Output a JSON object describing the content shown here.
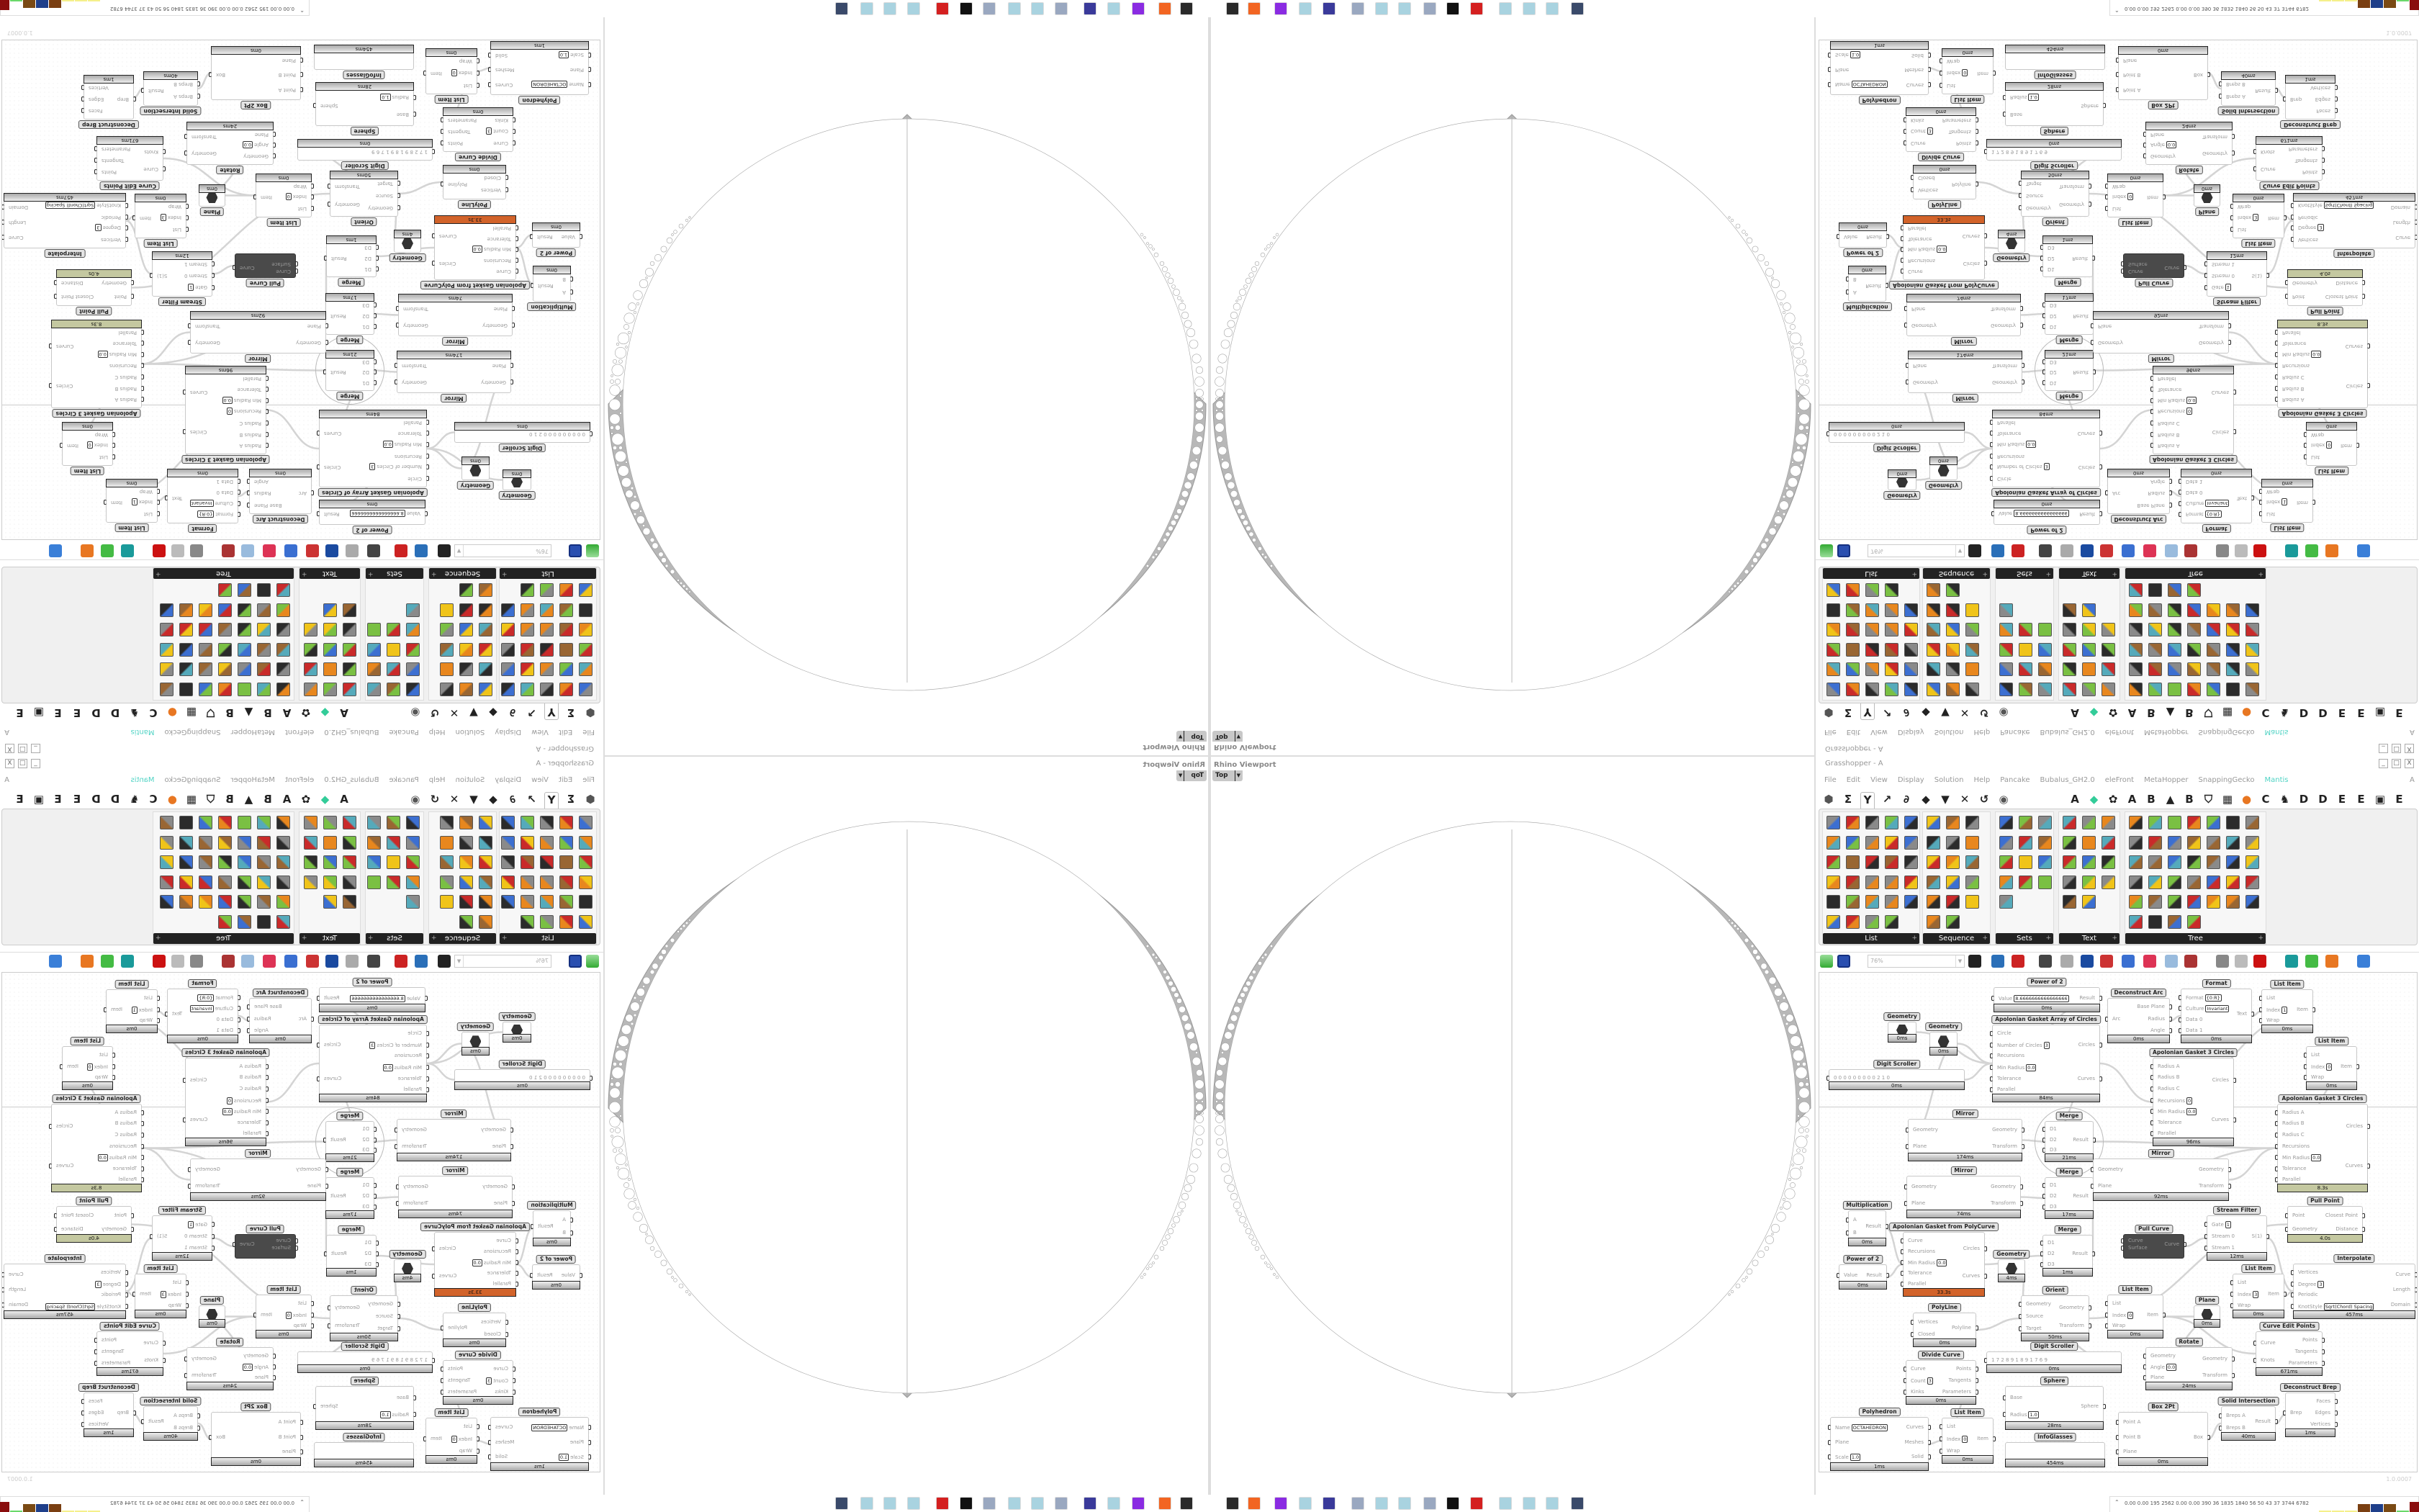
{
  "viewport": {
    "title": "Rhino Viewport",
    "view": "Top"
  },
  "grasshopper": {
    "title": "Grasshopper - A",
    "window_buttons": [
      "_",
      "□",
      "X"
    ],
    "menu": [
      "File",
      "Edit",
      "View",
      "Display",
      "Solution",
      "Help",
      "Pancake",
      "Bubalus_GH2.0",
      "eleFront",
      "MetaHopper",
      "SnappingGecko",
      "Mantis"
    ],
    "menu_accent": "#4fd3c4",
    "user_initial": "A",
    "tabs": [
      {
        "icon": "params-hexagon-icon",
        "glyph": "⬢"
      },
      {
        "icon": "maths-sigma-icon",
        "glyph": "Σ"
      },
      {
        "icon": "sets-icon",
        "glyph": "Y",
        "selected": true
      },
      {
        "icon": "vector-arrow-icon",
        "glyph": "↗"
      },
      {
        "icon": "curve-icon",
        "glyph": "∂"
      },
      {
        "icon": "surface-icon",
        "glyph": "◆"
      },
      {
        "icon": "mesh-icon",
        "glyph": "▼"
      },
      {
        "icon": "intersect-icon",
        "glyph": "✕"
      },
      {
        "icon": "transform-icon",
        "glyph": "↺"
      },
      {
        "icon": "display-eye-icon",
        "glyph": "◉"
      },
      {
        "icon": "letter-tab",
        "glyph": "A"
      },
      {
        "icon": "gem-icon",
        "glyph": "◆"
      },
      {
        "icon": "gear-icon",
        "glyph": "✿"
      },
      {
        "icon": "letter-tab",
        "glyph": "A"
      },
      {
        "icon": "letter-tab",
        "glyph": "B"
      },
      {
        "icon": "mountain-icon",
        "glyph": "▲"
      },
      {
        "icon": "letter-tab",
        "glyph": "B"
      },
      {
        "icon": "shield-icon",
        "glyph": "⛉"
      },
      {
        "icon": "grid-icon",
        "glyph": "▦"
      },
      {
        "icon": "orange-circle-icon",
        "glyph": "●"
      },
      {
        "icon": "letter-tab",
        "glyph": "C"
      },
      {
        "icon": "rooster-icon",
        "glyph": "♞"
      },
      {
        "icon": "letter-tab",
        "glyph": "D"
      },
      {
        "icon": "letter-tab",
        "glyph": "D"
      },
      {
        "icon": "letter-tab",
        "glyph": "E"
      },
      {
        "icon": "letter-tab",
        "glyph": "E"
      },
      {
        "icon": "dotted-square-icon",
        "glyph": "▣"
      },
      {
        "icon": "letter-tab",
        "glyph": "E"
      }
    ],
    "panels": [
      {
        "label": "List"
      },
      {
        "label": "Sequence"
      },
      {
        "label": "Sets"
      },
      {
        "label": "Text"
      },
      {
        "label": "Tree"
      }
    ],
    "zoom": "76%",
    "version": "1.0.0007",
    "nodes": [
      {
        "title": "Power of 2",
        "inputs": [
          {
            "label": "Value",
            "value": "8.6666666666666666"
          }
        ],
        "outputs": [
          "Result"
        ],
        "time": "0ms"
      },
      {
        "title": "Apolonian Gasket Array of Circles",
        "inputs": [
          {
            "label": "Circle"
          },
          {
            "label": "Number of Circles",
            "value": "3"
          },
          {
            "label": "Recursions"
          },
          {
            "label": "Min Radius",
            "value": "0.0"
          },
          {
            "label": "Tolerance"
          },
          {
            "label": "Parallel"
          }
        ],
        "outputs": [
          "Circles",
          "Curves"
        ],
        "time": "84ms"
      },
      {
        "title": "Geometry",
        "inputs": [],
        "outputs": [],
        "time": "0ms",
        "icon": true
      },
      {
        "title": "Geometry",
        "inputs": [],
        "outputs": [],
        "time": "0ms",
        "icon": true
      },
      {
        "title": "Digit Scroller",
        "inputs": [
          {
            "label": "0 0 0 0 0 0 0 0 0 2 1 0"
          }
        ],
        "outputs": [],
        "time": "0ms"
      },
      {
        "title": "Mirror",
        "inputs": [
          {
            "label": "Geometry"
          },
          {
            "label": "Plane"
          }
        ],
        "outputs": [
          "Geometry",
          "Transform"
        ],
        "time": "174ms"
      },
      {
        "title": "Merge",
        "inputs": [
          {
            "label": "D1"
          },
          {
            "label": "D2"
          },
          {
            "label": "D3"
          }
        ],
        "outputs": [
          "Result"
        ],
        "time": "21ms"
      },
      {
        "title": "Mirror",
        "inputs": [
          {
            "label": "Geometry"
          },
          {
            "label": "Plane"
          }
        ],
        "outputs": [
          "Geometry",
          "Transform"
        ],
        "time": "74ms"
      },
      {
        "title": "Merge",
        "inputs": [
          {
            "label": "D1"
          },
          {
            "label": "D2"
          },
          {
            "label": "D3"
          }
        ],
        "outputs": [
          "Result"
        ],
        "time": "17ms"
      },
      {
        "title": "Multiplication",
        "inputs": [
          {
            "label": "A"
          },
          {
            "label": "B"
          }
        ],
        "outputs": [
          "Result"
        ],
        "time": "0ms"
      },
      {
        "title": "Apolonian Gasket from PolyCurve",
        "inputs": [
          {
            "label": "Curve"
          },
          {
            "label": "Recursions"
          },
          {
            "label": "Min Radius",
            "value": "0.0"
          },
          {
            "label": "Tolerance"
          },
          {
            "label": "Parallel"
          }
        ],
        "outputs": [
          "Circles",
          "Curves"
        ],
        "time": "33.3s",
        "state": "warn"
      },
      {
        "title": "Merge",
        "inputs": [
          {
            "label": "D1"
          },
          {
            "label": "D2"
          },
          {
            "label": "D3"
          }
        ],
        "outputs": [
          "Result"
        ],
        "time": "1ms"
      },
      {
        "title": "Geometry",
        "inputs": [],
        "outputs": [],
        "time": "4ms",
        "icon": true
      },
      {
        "title": "Power of 2",
        "inputs": [
          {
            "label": "Value"
          }
        ],
        "outputs": [
          "Result"
        ],
        "time": "0ms"
      },
      {
        "title": "Orient",
        "inputs": [
          {
            "label": "Geometry"
          },
          {
            "label": "Source"
          },
          {
            "label": "Target"
          }
        ],
        "outputs": [
          "Geometry",
          "Transform"
        ],
        "time": "50ms"
      },
      {
        "title": "PolyLine",
        "inputs": [
          {
            "label": "Vertices"
          },
          {
            "label": "Closed"
          }
        ],
        "outputs": [
          "Polyline"
        ],
        "time": "0ms"
      },
      {
        "title": "Digit Scroller",
        "inputs": [
          {
            "label": "1 7 2 8 9 1 8 9 1 7 6 9"
          }
        ],
        "outputs": [],
        "time": "0ms"
      },
      {
        "title": "Divide Curve",
        "inputs": [
          {
            "label": "Curve"
          },
          {
            "label": "Count",
            "value": "3"
          },
          {
            "label": "Kinks"
          }
        ],
        "outputs": [
          "Points",
          "Tangents",
          "Parameters"
        ],
        "time": "0ms"
      },
      {
        "title": "Sphere",
        "inputs": [
          {
            "label": "Base"
          },
          {
            "label": "Radius",
            "value": "1.0"
          }
        ],
        "outputs": [
          "Sphere"
        ],
        "time": "28ms"
      },
      {
        "title": "Polyhedron",
        "inputs": [
          {
            "label": "Name",
            "value": "OCTAHEDRON"
          },
          {
            "label": "Plane"
          },
          {
            "label": "Scale",
            "value": "1.0"
          }
        ],
        "outputs": [
          "Curves",
          "Meshes",
          "Solid"
        ],
        "time": "1ms"
      },
      {
        "title": "List Item",
        "inputs": [
          {
            "label": "List"
          },
          {
            "label": "Index",
            "value": "0"
          },
          {
            "label": "Wrap"
          }
        ],
        "outputs": [
          "Item"
        ],
        "time": "0ms"
      },
      {
        "title": "InfoGlasses",
        "inputs": [],
        "outputs": [],
        "time": "454ms"
      },
      {
        "title": "Deconstruct Arc",
        "inputs": [
          {
            "label": "Arc"
          }
        ],
        "outputs": [
          "Base Plane",
          "Radius",
          "Angle"
        ],
        "time": "0ms"
      },
      {
        "title": "Format",
        "inputs": [
          {
            "label": "Format",
            "value": "{0:R}"
          },
          {
            "label": "Culture",
            "value": "Invariant"
          },
          {
            "label": "Data 0"
          },
          {
            "label": "Data 1"
          }
        ],
        "outputs": [
          "Text"
        ],
        "time": "0ms"
      },
      {
        "title": "List Item",
        "inputs": [
          {
            "label": "List"
          },
          {
            "label": "Index",
            "value": "1"
          },
          {
            "label": "Wrap"
          }
        ],
        "outputs": [
          "Item"
        ],
        "time": "0ms"
      },
      {
        "title": "Apolonian Gasket 3 Circles",
        "inputs": [
          {
            "label": "Radius A"
          },
          {
            "label": "Radius B"
          },
          {
            "label": "Radius C"
          },
          {
            "label": "Recursions",
            "value": "0"
          },
          {
            "label": "Min Radius",
            "value": "0.0"
          },
          {
            "label": "Tolerance"
          },
          {
            "label": "Parallel"
          }
        ],
        "outputs": [
          "Circles",
          "Curves"
        ],
        "time": "96ms"
      },
      {
        "title": "List Item",
        "inputs": [
          {
            "label": "List"
          },
          {
            "label": "Index",
            "value": "0"
          },
          {
            "label": "Wrap"
          }
        ],
        "outputs": [
          "Item"
        ],
        "time": "0ms"
      },
      {
        "title": "Apolonian Gasket 3 Circles",
        "inputs": [
          {
            "label": "Radius A"
          },
          {
            "label": "Radius B"
          },
          {
            "label": "Radius C"
          },
          {
            "label": "Recursions"
          },
          {
            "label": "Min Radius",
            "value": "0.0"
          },
          {
            "label": "Tolerance"
          },
          {
            "label": "Parallel"
          }
        ],
        "outputs": [
          "Circles",
          "Curves"
        ],
        "time": "8.3s",
        "state": "slow"
      },
      {
        "title": "Mirror",
        "inputs": [
          {
            "label": "Geometry"
          },
          {
            "label": "Plane"
          }
        ],
        "outputs": [
          "Geometry",
          "Transform"
        ],
        "time": "92ms"
      },
      {
        "title": "Pull Point",
        "inputs": [
          {
            "label": "Point"
          },
          {
            "label": "Geometry"
          }
        ],
        "outputs": [
          "Closest Point",
          "Distance"
        ],
        "time": "4.0s",
        "state": "slow"
      },
      {
        "title": "Stream Filter",
        "inputs": [
          {
            "label": "Gate",
            "value": "1"
          },
          {
            "label": "Stream 0"
          },
          {
            "label": "Stream 1"
          }
        ],
        "outputs": [
          "S(1)"
        ],
        "time": "12ms"
      },
      {
        "title": "Pull Curve",
        "inputs": [
          {
            "label": "Curve"
          },
          {
            "label": "Surface"
          }
        ],
        "outputs": [
          "Curve"
        ],
        "time": "",
        "state": "disabled"
      },
      {
        "title": "Interpolate",
        "inputs": [
          {
            "label": "Vertices"
          },
          {
            "label": "Degree",
            "value": "3"
          },
          {
            "label": "Periodic"
          },
          {
            "label": "KnotStyle",
            "value": "Sqrt(Chord) Spacing"
          }
        ],
        "outputs": [
          "Curve",
          "Length",
          "Domain"
        ],
        "time": "457ms"
      },
      {
        "title": "List Item",
        "inputs": [
          {
            "label": "List"
          },
          {
            "label": "Index",
            "value": "3"
          },
          {
            "label": "Wrap"
          }
        ],
        "outputs": [
          "Item"
        ],
        "time": "0ms"
      },
      {
        "title": "List Item",
        "inputs": [
          {
            "label": "List"
          },
          {
            "label": "Index",
            "value": "0"
          },
          {
            "label": "Wrap"
          }
        ],
        "outputs": [
          "Item"
        ],
        "time": "0ms"
      },
      {
        "title": "Plane",
        "inputs": [],
        "outputs": [],
        "time": "0ms",
        "icon": true
      },
      {
        "title": "Curve Edit Points",
        "inputs": [
          {
            "label": "Curve"
          },
          {
            "label": "Knots"
          }
        ],
        "outputs": [
          "Points",
          "Tangents",
          "Parameters"
        ],
        "time": "671ms"
      },
      {
        "title": "Rotate",
        "inputs": [
          {
            "label": "Geometry"
          },
          {
            "label": "Angle",
            "value": "0.0"
          },
          {
            "label": "Plane"
          }
        ],
        "outputs": [
          "Geometry",
          "Transform"
        ],
        "time": "24ms"
      },
      {
        "title": "Deconstruct Brep",
        "inputs": [
          {
            "label": "Brep"
          }
        ],
        "outputs": [
          "Faces",
          "Edges",
          "Vertices"
        ],
        "time": "1ms"
      },
      {
        "title": "Solid Intersection",
        "inputs": [
          {
            "label": "Breps A"
          },
          {
            "label": "Breps B"
          }
        ],
        "outputs": [
          "Result"
        ],
        "time": "40ms"
      },
      {
        "title": "Box 2Pt",
        "inputs": [
          {
            "label": "Point A"
          },
          {
            "label": "Point B"
          },
          {
            "label": "Plane"
          }
        ],
        "outputs": [
          "Box"
        ],
        "time": "0ms"
      }
    ]
  },
  "taskbar": {
    "apps": [
      {
        "icon": "terminal-icon",
        "color": "#2a2a2a"
      },
      {
        "icon": "firefox-icon",
        "color": "#f26522"
      },
      {
        "icon": "purple-app-icon",
        "color": "#8a2be2"
      },
      {
        "icon": "notepad-icon",
        "color": "#a9d3e0"
      },
      {
        "icon": "floppy-icon",
        "color": "#3a3a9a"
      },
      {
        "icon": "scroll-icon",
        "color": "#9aa8c0"
      },
      {
        "icon": "notepad-icon",
        "color": "#a9d3e0"
      },
      {
        "icon": "notepad-icon",
        "color": "#a9d3e0"
      },
      {
        "icon": "scroll-icon",
        "color": "#9aa8c0"
      },
      {
        "icon": "inkscape-icon",
        "color": "#111111"
      },
      {
        "icon": "red-gear-icon",
        "color": "#d42020"
      },
      {
        "icon": "notepad-icon",
        "color": "#a9d3e0"
      },
      {
        "icon": "notepad-icon",
        "color": "#a9d3e0"
      },
      {
        "icon": "notepad-icon",
        "color": "#a9d3e0"
      },
      {
        "icon": "computer-icon",
        "color": "#3a4a6a"
      }
    ],
    "tray_stats": "0.00 0.00 195 2562 0.00 0.00 390 36 1835 1840 56 50 43 37 3744 6782",
    "tray_bars": [
      "#f5f08a",
      "#f5f08a",
      "#f5f08a",
      "#7a3f12",
      "#1f3f8a",
      "#7a4a14",
      "#6ad86a",
      "#8a0e0e"
    ]
  }
}
